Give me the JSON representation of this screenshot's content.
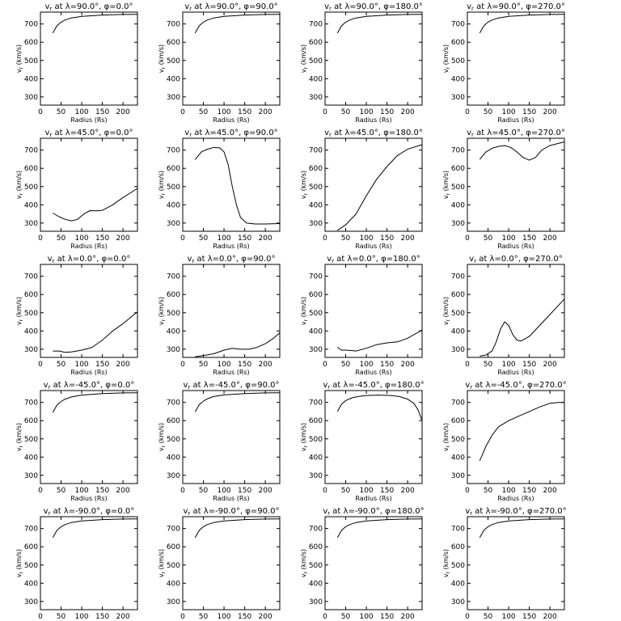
{
  "common": {
    "xlabel": "Radius (Rs)",
    "ylabel": "v",
    "ylabel_sub": "r",
    "ylabel_unit": " (km/s)",
    "xlim": [
      0,
      235
    ],
    "ylim": [
      255,
      765
    ],
    "xticks": [
      0,
      50,
      100,
      150,
      200
    ],
    "yticks": [
      300,
      400,
      500,
      600,
      700
    ]
  },
  "chart_data": [
    {
      "type": "line",
      "title_prefix": "v",
      "title_sub": "r",
      "title_rest": " at λ=90.0°, φ=0.0°",
      "x": [
        30,
        40,
        50,
        60,
        75,
        100,
        150,
        200,
        235
      ],
      "y": [
        650,
        690,
        710,
        722,
        733,
        742,
        749,
        752,
        753
      ]
    },
    {
      "type": "line",
      "title_prefix": "v",
      "title_sub": "r",
      "title_rest": " at λ=90.0°, φ=90.0°",
      "x": [
        30,
        40,
        50,
        60,
        75,
        100,
        150,
        200,
        235
      ],
      "y": [
        650,
        690,
        710,
        722,
        733,
        742,
        749,
        752,
        753
      ]
    },
    {
      "type": "line",
      "title_prefix": "v",
      "title_sub": "r",
      "title_rest": " at λ=90.0°, φ=180.0°",
      "x": [
        30,
        40,
        50,
        60,
        75,
        100,
        150,
        200,
        235
      ],
      "y": [
        650,
        690,
        710,
        722,
        733,
        742,
        749,
        752,
        753
      ]
    },
    {
      "type": "line",
      "title_prefix": "v",
      "title_sub": "r",
      "title_rest": " at λ=90.0°, φ=270.0°",
      "x": [
        30,
        40,
        50,
        60,
        75,
        100,
        150,
        200,
        235
      ],
      "y": [
        650,
        690,
        710,
        722,
        733,
        742,
        749,
        752,
        753
      ]
    },
    {
      "type": "line",
      "title_prefix": "v",
      "title_sub": "r",
      "title_rest": " at λ=45.0°, φ=0.0°",
      "x": [
        30,
        45,
        60,
        75,
        90,
        105,
        120,
        135,
        150,
        175,
        200,
        235
      ],
      "y": [
        355,
        335,
        320,
        312,
        320,
        350,
        368,
        367,
        370,
        400,
        440,
        490
      ]
    },
    {
      "type": "line",
      "title_prefix": "v",
      "title_sub": "r",
      "title_rest": " at λ=45.0°, φ=90.0°",
      "x": [
        30,
        45,
        60,
        75,
        90,
        100,
        110,
        120,
        130,
        140,
        155,
        175,
        200,
        235
      ],
      "y": [
        648,
        690,
        705,
        715,
        712,
        690,
        620,
        500,
        400,
        330,
        300,
        295,
        295,
        297
      ]
    },
    {
      "type": "line",
      "title_prefix": "v",
      "title_sub": "r",
      "title_rest": " at λ=45.0°, φ=180.0°",
      "x": [
        30,
        50,
        75,
        100,
        125,
        150,
        175,
        200,
        235
      ],
      "y": [
        260,
        290,
        350,
        450,
        540,
        610,
        670,
        705,
        730
      ]
    },
    {
      "type": "line",
      "title_prefix": "v",
      "title_sub": "r",
      "title_rest": " at λ=45.0°, φ=270.0°",
      "x": [
        30,
        45,
        60,
        75,
        90,
        105,
        120,
        135,
        150,
        165,
        180,
        200,
        235
      ],
      "y": [
        650,
        690,
        710,
        720,
        725,
        715,
        690,
        660,
        645,
        660,
        700,
        725,
        745
      ]
    },
    {
      "type": "line",
      "title_prefix": "v",
      "title_sub": "r",
      "title_rest": " at λ=0.0°, φ=0.0°",
      "x": [
        30,
        45,
        60,
        75,
        100,
        125,
        150,
        175,
        200,
        235
      ],
      "y": [
        290,
        290,
        283,
        285,
        295,
        310,
        350,
        400,
        440,
        505
      ]
    },
    {
      "type": "line",
      "title_prefix": "v",
      "title_sub": "r",
      "title_rest": " at λ=0.0°, φ=90.0°",
      "x": [
        30,
        50,
        75,
        100,
        120,
        140,
        160,
        180,
        200,
        220,
        235
      ],
      "y": [
        258,
        265,
        275,
        295,
        305,
        300,
        300,
        310,
        330,
        360,
        390
      ]
    },
    {
      "type": "line",
      "title_prefix": "v",
      "title_sub": "r",
      "title_rest": " at λ=0.0°, φ=180.0°",
      "x": [
        30,
        40,
        50,
        60,
        75,
        100,
        125,
        150,
        175,
        200,
        235
      ],
      "y": [
        310,
        295,
        295,
        293,
        290,
        305,
        325,
        335,
        340,
        360,
        405
      ]
    },
    {
      "type": "line",
      "title_prefix": "v",
      "title_sub": "r",
      "title_rest": " at λ=0.0°, φ=270.0°",
      "x": [
        30,
        45,
        60,
        70,
        80,
        90,
        100,
        110,
        120,
        130,
        150,
        175,
        200,
        235
      ],
      "y": [
        262,
        268,
        290,
        340,
        410,
        450,
        430,
        380,
        350,
        345,
        370,
        430,
        490,
        575
      ]
    },
    {
      "type": "line",
      "title_prefix": "v",
      "title_sub": "r",
      "title_rest": " at λ=-45.0°, φ=0.0°",
      "x": [
        30,
        40,
        50,
        60,
        75,
        100,
        150,
        200,
        235
      ],
      "y": [
        645,
        685,
        705,
        718,
        730,
        740,
        748,
        752,
        753
      ]
    },
    {
      "type": "line",
      "title_prefix": "v",
      "title_sub": "r",
      "title_rest": " at λ=-45.0°, φ=90.0°",
      "x": [
        30,
        40,
        50,
        60,
        75,
        100,
        150,
        200,
        235
      ],
      "y": [
        648,
        688,
        707,
        720,
        732,
        741,
        748,
        752,
        753
      ]
    },
    {
      "type": "line",
      "title_prefix": "v",
      "title_sub": "r",
      "title_rest": " at λ=-45.0°, φ=180.0°",
      "x": [
        30,
        40,
        50,
        65,
        80,
        100,
        130,
        160,
        180,
        200,
        215,
        225,
        235
      ],
      "y": [
        650,
        690,
        710,
        725,
        732,
        738,
        740,
        738,
        732,
        718,
        695,
        660,
        600
      ]
    },
    {
      "type": "line",
      "title_prefix": "v",
      "title_sub": "r",
      "title_rest": " at λ=-45.0°, φ=270.0°",
      "x": [
        30,
        45,
        60,
        75,
        100,
        125,
        150,
        175,
        200,
        220,
        235
      ],
      "y": [
        380,
        460,
        520,
        565,
        600,
        625,
        650,
        675,
        695,
        700,
        700
      ]
    },
    {
      "type": "line",
      "title_prefix": "v",
      "title_sub": "r",
      "title_rest": " at λ=-90.0°, φ=0.0°",
      "x": [
        30,
        40,
        50,
        60,
        75,
        100,
        150,
        200,
        235
      ],
      "y": [
        650,
        690,
        710,
        722,
        733,
        742,
        749,
        752,
        753
      ]
    },
    {
      "type": "line",
      "title_prefix": "v",
      "title_sub": "r",
      "title_rest": " at λ=-90.0°, φ=90.0°",
      "x": [
        30,
        40,
        50,
        60,
        75,
        100,
        150,
        200,
        235
      ],
      "y": [
        650,
        690,
        710,
        722,
        733,
        742,
        749,
        752,
        753
      ]
    },
    {
      "type": "line",
      "title_prefix": "v",
      "title_sub": "r",
      "title_rest": " at λ=-90.0°, φ=180.0°",
      "x": [
        30,
        40,
        50,
        60,
        75,
        100,
        150,
        200,
        235
      ],
      "y": [
        650,
        690,
        710,
        722,
        733,
        742,
        749,
        752,
        753
      ]
    },
    {
      "type": "line",
      "title_prefix": "v",
      "title_sub": "r",
      "title_rest": " at λ=-90.0°, φ=270.0°",
      "x": [
        30,
        40,
        50,
        60,
        75,
        100,
        150,
        200,
        235
      ],
      "y": [
        650,
        690,
        710,
        722,
        733,
        742,
        749,
        752,
        753
      ]
    }
  ]
}
